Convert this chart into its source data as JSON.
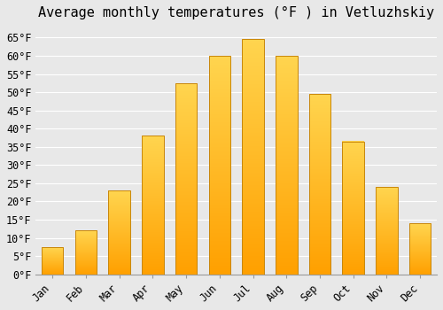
{
  "title": "Average monthly temperatures (°F ) in Vetluzhskiy",
  "months": [
    "Jan",
    "Feb",
    "Mar",
    "Apr",
    "May",
    "Jun",
    "Jul",
    "Aug",
    "Sep",
    "Oct",
    "Nov",
    "Dec"
  ],
  "values": [
    7.5,
    12.0,
    23.0,
    38.0,
    52.5,
    60.0,
    64.5,
    60.0,
    49.5,
    36.5,
    24.0,
    14.0
  ],
  "bar_color_top": "#FFD54F",
  "bar_color_bottom": "#FFA000",
  "bar_edge_color": "#C8860A",
  "ylim": [
    0,
    68
  ],
  "yticks": [
    0,
    5,
    10,
    15,
    20,
    25,
    30,
    35,
    40,
    45,
    50,
    55,
    60,
    65
  ],
  "ytick_labels": [
    "0°F",
    "5°F",
    "10°F",
    "15°F",
    "20°F",
    "25°F",
    "30°F",
    "35°F",
    "40°F",
    "45°F",
    "50°F",
    "55°F",
    "60°F",
    "65°F"
  ],
  "background_color": "#e8e8e8",
  "grid_color": "#ffffff",
  "title_fontsize": 11,
  "tick_fontsize": 8.5
}
